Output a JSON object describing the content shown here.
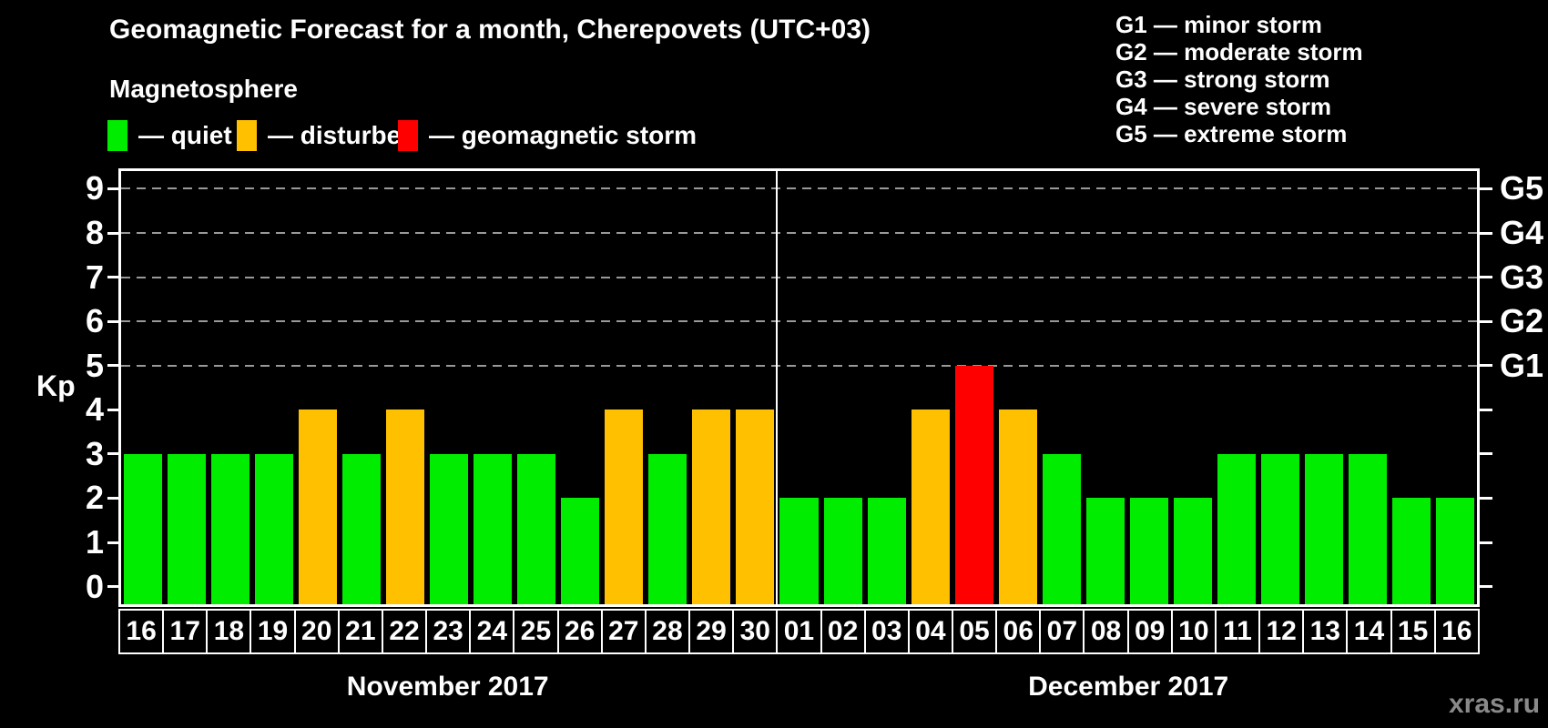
{
  "title": "Geomagnetic Forecast for a month, Cherepovets (UTC+03)",
  "legend": {
    "title": "Magnetosphere",
    "items": [
      {
        "status": "quiet",
        "label": "— quiet"
      },
      {
        "status": "disturbed",
        "label": "— disturbed"
      },
      {
        "status": "storm",
        "label": "— geomagnetic storm"
      }
    ]
  },
  "g_scale_legend": [
    "G1 — minor storm",
    "G2 — moderate storm",
    "G3 — strong storm",
    "G4 — severe storm",
    "G5 — extreme storm"
  ],
  "watermark": "xras.ru",
  "colors": {
    "quiet": "#00ED00",
    "disturbed": "#FFC000",
    "storm": "#FF0000",
    "grid": "#999999",
    "axis": "#FFFFFF",
    "background": "#000000",
    "watermark": "#8A8A8A"
  },
  "chart_data": {
    "type": "bar",
    "ylabel": "Kp",
    "ylim": [
      0,
      9
    ],
    "yticks": [
      0,
      1,
      2,
      3,
      4,
      5,
      6,
      7,
      8,
      9
    ],
    "gridlines_at": [
      5,
      6,
      7,
      8,
      9
    ],
    "grid_style": "dashed",
    "legend_position": "top",
    "right_axis_labels": [
      {
        "kp": 5,
        "label": "G1"
      },
      {
        "kp": 6,
        "label": "G2"
      },
      {
        "kp": 7,
        "label": "G3"
      },
      {
        "kp": 8,
        "label": "G4"
      },
      {
        "kp": 9,
        "label": "G5"
      }
    ],
    "months": [
      {
        "label": "November 2017",
        "days": [
          {
            "day": "16",
            "kp": 3,
            "status": "quiet"
          },
          {
            "day": "17",
            "kp": 3,
            "status": "quiet"
          },
          {
            "day": "18",
            "kp": 3,
            "status": "quiet"
          },
          {
            "day": "19",
            "kp": 3,
            "status": "quiet"
          },
          {
            "day": "20",
            "kp": 4,
            "status": "disturbed"
          },
          {
            "day": "21",
            "kp": 3,
            "status": "quiet"
          },
          {
            "day": "22",
            "kp": 4,
            "status": "disturbed"
          },
          {
            "day": "23",
            "kp": 3,
            "status": "quiet"
          },
          {
            "day": "24",
            "kp": 3,
            "status": "quiet"
          },
          {
            "day": "25",
            "kp": 3,
            "status": "quiet"
          },
          {
            "day": "26",
            "kp": 2,
            "status": "quiet"
          },
          {
            "day": "27",
            "kp": 4,
            "status": "disturbed"
          },
          {
            "day": "28",
            "kp": 3,
            "status": "quiet"
          },
          {
            "day": "29",
            "kp": 4,
            "status": "disturbed"
          },
          {
            "day": "30",
            "kp": 4,
            "status": "disturbed"
          }
        ]
      },
      {
        "label": "December 2017",
        "days": [
          {
            "day": "01",
            "kp": 2,
            "status": "quiet"
          },
          {
            "day": "02",
            "kp": 2,
            "status": "quiet"
          },
          {
            "day": "03",
            "kp": 2,
            "status": "quiet"
          },
          {
            "day": "04",
            "kp": 4,
            "status": "disturbed"
          },
          {
            "day": "05",
            "kp": 5,
            "status": "storm"
          },
          {
            "day": "06",
            "kp": 4,
            "status": "disturbed"
          },
          {
            "day": "07",
            "kp": 3,
            "status": "quiet"
          },
          {
            "day": "08",
            "kp": 2,
            "status": "quiet"
          },
          {
            "day": "09",
            "kp": 2,
            "status": "quiet"
          },
          {
            "day": "10",
            "kp": 2,
            "status": "quiet"
          },
          {
            "day": "11",
            "kp": 3,
            "status": "quiet"
          },
          {
            "day": "12",
            "kp": 3,
            "status": "quiet"
          },
          {
            "day": "13",
            "kp": 3,
            "status": "quiet"
          },
          {
            "day": "14",
            "kp": 3,
            "status": "quiet"
          },
          {
            "day": "15",
            "kp": 2,
            "status": "quiet"
          },
          {
            "day": "16",
            "kp": 2,
            "status": "quiet"
          }
        ]
      }
    ]
  }
}
